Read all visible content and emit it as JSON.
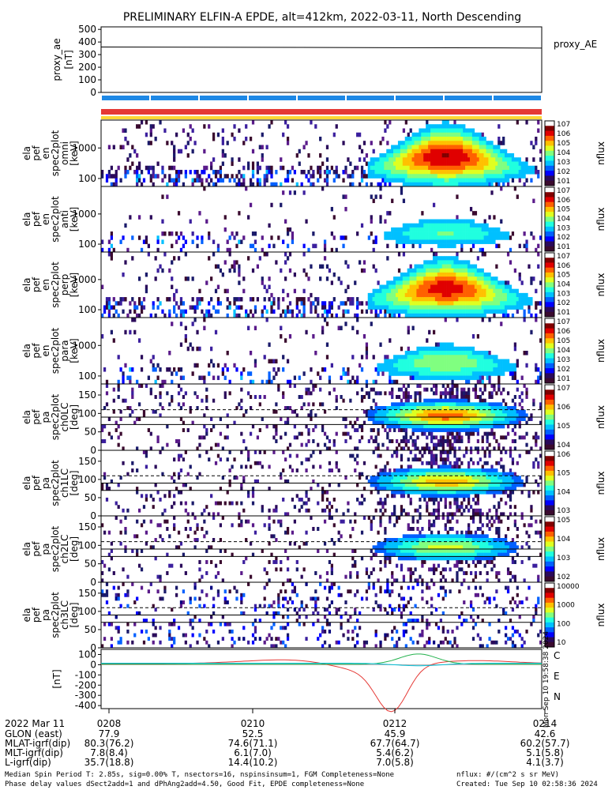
{
  "title": "PRELIMINARY ELFIN-A EPDE, alt=412km, 2022-03-11, North Descending",
  "colors": {
    "orbit_bar": "#1e88e5",
    "red_bar": "#e53935",
    "yellow_bar": "#fdd835",
    "field_C": "#00bcd4",
    "field_E": "#e53935",
    "field_N": "#22b14c"
  },
  "chart_data": [
    {
      "type": "line",
      "name": "proxy_ae",
      "ylabel_lines": [
        "proxy_ae",
        "[nT]"
      ],
      "legend": "proxy_AE",
      "yticks": [
        "500",
        "400",
        "300",
        "200",
        "100",
        "0"
      ],
      "ylim": [
        0,
        520
      ],
      "x": [
        "02:08",
        "02:10",
        "02:12",
        "02:14"
      ],
      "values": [
        360,
        358,
        355,
        352
      ]
    },
    {
      "type": "heatmap",
      "name": "elx_pef_en_spec2plot_omni",
      "ylabel_lines": [
        "ela",
        "pef",
        "en",
        "spec2plot",
        "omni",
        "[keV]"
      ],
      "yticks": [
        "1000",
        "100"
      ],
      "scale": "log",
      "cbar_label": "nflux",
      "cbar_ticks": [
        "10^7",
        "10^6",
        "10^5",
        "10^4",
        "10^3",
        "10^2",
        "10^1"
      ]
    },
    {
      "type": "heatmap",
      "name": "elx_pef_en_spec2plot_anti",
      "ylabel_lines": [
        "ela",
        "pef",
        "en",
        "spec2plot",
        "anti",
        "[keV]"
      ],
      "yticks": [
        "1000",
        "100"
      ],
      "scale": "log",
      "cbar_label": "nflux",
      "cbar_ticks": [
        "10^7",
        "10^6",
        "10^5",
        "10^4",
        "10^3",
        "10^2",
        "10^1"
      ]
    },
    {
      "type": "heatmap",
      "name": "elx_pef_en_spec2plot_perp",
      "ylabel_lines": [
        "ela",
        "pef",
        "en",
        "spec2plot",
        "perp",
        "[keV]"
      ],
      "yticks": [
        "1000",
        "100"
      ],
      "scale": "log",
      "cbar_label": "nflux",
      "cbar_ticks": [
        "10^7",
        "10^6",
        "10^5",
        "10^4",
        "10^3",
        "10^2",
        "10^1"
      ]
    },
    {
      "type": "heatmap",
      "name": "elx_pef_en_spec2plot_para",
      "ylabel_lines": [
        "ela",
        "pef",
        "en",
        "spec2plot",
        "para",
        "[keV]"
      ],
      "yticks": [
        "1000",
        "100"
      ],
      "scale": "log",
      "cbar_label": "nflux",
      "cbar_ticks": [
        "10^7",
        "10^6",
        "10^5",
        "10^4",
        "10^3",
        "10^2",
        "10^1"
      ]
    },
    {
      "type": "heatmap",
      "name": "elx_pef_pa_spec2plot_ch0LC",
      "ylabel_lines": [
        "ela",
        "pef",
        "pa",
        "spec2plot",
        "ch0LC",
        "[deg]"
      ],
      "yticks": [
        "150",
        "100",
        "50",
        "0"
      ],
      "ylim": [
        0,
        180
      ],
      "cbar_label": "nflux",
      "cbar_ticks": [
        "10^7",
        "10^6",
        "10^5",
        "10^4"
      ]
    },
    {
      "type": "heatmap",
      "name": "elx_pef_pa_spec2plot_ch1LC",
      "ylabel_lines": [
        "ela",
        "pef",
        "pa",
        "spec2plot",
        "ch1LC",
        "[deg]"
      ],
      "yticks": [
        "150",
        "100",
        "50",
        "0"
      ],
      "ylim": [
        0,
        180
      ],
      "cbar_label": "nflux",
      "cbar_ticks": [
        "10^6",
        "10^5",
        "10^4",
        "10^3"
      ]
    },
    {
      "type": "heatmap",
      "name": "elx_pef_pa_spec2plot_ch2LC",
      "ylabel_lines": [
        "ela",
        "pef",
        "pa",
        "spec2plot",
        "ch2LC",
        "[deg]"
      ],
      "yticks": [
        "150",
        "100",
        "50",
        "0"
      ],
      "ylim": [
        0,
        180
      ],
      "cbar_label": "nflux",
      "cbar_ticks": [
        "10^5",
        "10^4",
        "10^3",
        "10^2"
      ]
    },
    {
      "type": "heatmap",
      "name": "elx_pef_pa_spec2plot_ch3LC",
      "ylabel_lines": [
        "ela",
        "pef",
        "pa",
        "spec2plot",
        "ch3LC",
        "[deg]"
      ],
      "yticks": [
        "150",
        "100",
        "50",
        "0"
      ],
      "ylim": [
        0,
        180
      ],
      "cbar_label": "nflux",
      "cbar_ticks": [
        "10000",
        "1000",
        "100",
        "10"
      ]
    },
    {
      "type": "line",
      "name": "field_residuals",
      "ylabel_lines": [
        "[nT]"
      ],
      "yticks": [
        "100",
        "0",
        "-100",
        "-200",
        "-300",
        "-400"
      ],
      "ylim": [
        -430,
        150
      ],
      "legend_entries": [
        "C",
        "E",
        "N"
      ],
      "side_text": "Mon Sep 10 19:58:38 2024"
    }
  ],
  "ephemeris": {
    "date_label": "2022 Mar 11",
    "times": [
      "0208",
      "0210",
      "0212",
      "0214"
    ],
    "rows": [
      {
        "label": "GLON (east)",
        "values": [
          "77.9",
          "52.5",
          "45.9",
          "42.6"
        ]
      },
      {
        "label": "MLAT-igrf(dip)",
        "values": [
          "80.3(76.2)",
          "74.6(71.1)",
          "67.7(64.7)",
          "60.2(57.7)"
        ]
      },
      {
        "label": "MLT-igrf(dip)",
        "values": [
          "7.8(8.4)",
          "6.1(7.0)",
          "5.4(6.2)",
          "5.1(5.8)"
        ]
      },
      {
        "label": "L-igrf(dip)",
        "values": [
          "35.7(18.8)",
          "14.4(10.2)",
          "7.0(5.8)",
          "4.1(3.7)"
        ]
      }
    ]
  },
  "footer": {
    "line1": "Median Spin Period T: 2.85s, sig=0.00% T, nsectors=16, nspinsinsum=1, FGM Completeness=None",
    "line2": "Phase delay values dSect2add=1 and dPhAng2add=4.50, Good Fit, EPDE completeness=None",
    "units": "nflux: #/(cm^2 s sr MeV)",
    "created": "Created: Tue Sep 10 02:58:36 2024"
  }
}
